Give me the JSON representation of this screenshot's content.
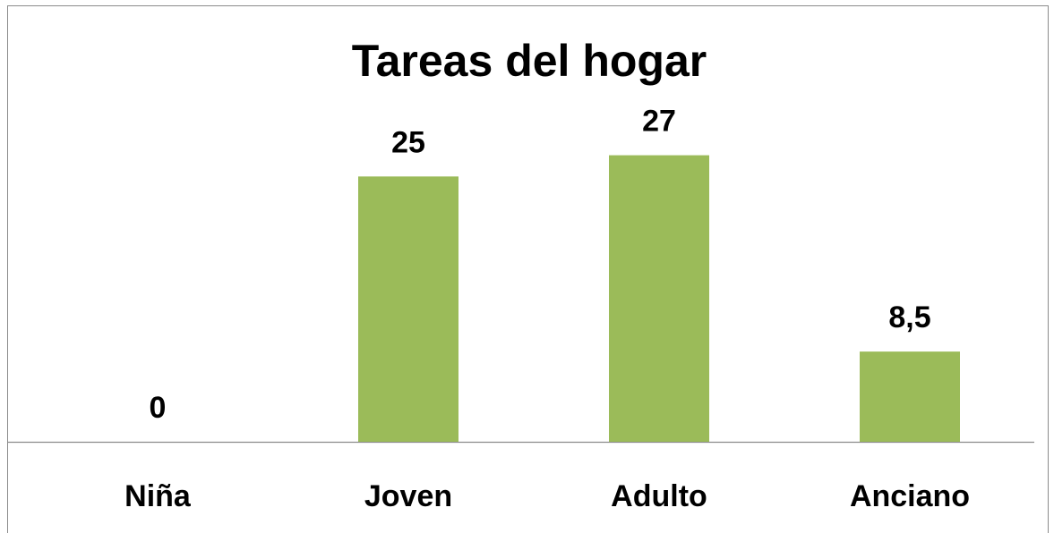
{
  "chart_data": {
    "type": "bar",
    "title": "Tareas del hogar",
    "categories": [
      "Niña",
      "Joven",
      "Adulto",
      "Anciano"
    ],
    "values": [
      0,
      25,
      27,
      8.5
    ],
    "value_labels": [
      "0",
      "25",
      "27",
      "8,5"
    ],
    "color": "#9bbb59",
    "ylim": [
      0,
      30
    ]
  }
}
